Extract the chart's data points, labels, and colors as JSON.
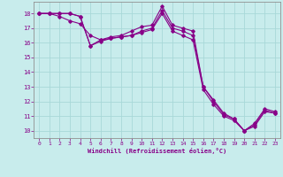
{
  "title": "",
  "xlabel": "Windchill (Refroidissement éolien,°C)",
  "bg_color": "#c8ecec",
  "line_color": "#880088",
  "grid_color": "#a8d8d8",
  "xlim": [
    -0.5,
    23.5
  ],
  "ylim": [
    9.5,
    18.8
  ],
  "xticks": [
    0,
    1,
    2,
    3,
    4,
    5,
    6,
    7,
    8,
    9,
    10,
    11,
    12,
    13,
    14,
    15,
    16,
    17,
    18,
    19,
    20,
    21,
    22,
    23
  ],
  "yticks": [
    10,
    11,
    12,
    13,
    14,
    15,
    16,
    17,
    18
  ],
  "series": [
    {
      "x": [
        0,
        1,
        2,
        3,
        4,
        5,
        6,
        7,
        8,
        9,
        10,
        11,
        12,
        13,
        14,
        15,
        16,
        17,
        18,
        19,
        20,
        21,
        22,
        23
      ],
      "y": [
        18,
        18,
        18,
        18,
        17.8,
        15.8,
        16.2,
        16.4,
        16.5,
        16.8,
        17.1,
        17.2,
        18.5,
        17.2,
        17.0,
        16.8,
        13.0,
        12.1,
        11.2,
        10.8,
        10.0,
        10.5,
        11.5,
        11.3
      ]
    },
    {
      "x": [
        0,
        1,
        2,
        3,
        4,
        5,
        6,
        7,
        8,
        9,
        10,
        11,
        12,
        13,
        14,
        15,
        16,
        17,
        18,
        19,
        20,
        21,
        22,
        23
      ],
      "y": [
        18,
        18,
        18,
        18,
        17.8,
        15.8,
        16.1,
        16.3,
        16.4,
        16.5,
        16.8,
        17.0,
        18.2,
        17.0,
        16.8,
        16.5,
        13.0,
        12.0,
        11.1,
        10.8,
        10.0,
        10.4,
        11.4,
        11.2
      ]
    },
    {
      "x": [
        0,
        1,
        2,
        3,
        4,
        5,
        6,
        7,
        8,
        9,
        10,
        11,
        12,
        13,
        14,
        15,
        16,
        17,
        18,
        19,
        20,
        21,
        22,
        23
      ],
      "y": [
        18,
        18,
        17.8,
        17.5,
        17.3,
        16.5,
        16.2,
        16.3,
        16.4,
        16.5,
        16.7,
        16.9,
        18.0,
        16.8,
        16.5,
        16.2,
        12.8,
        11.8,
        11.0,
        10.7,
        10.0,
        10.3,
        11.3,
        11.2
      ]
    }
  ]
}
